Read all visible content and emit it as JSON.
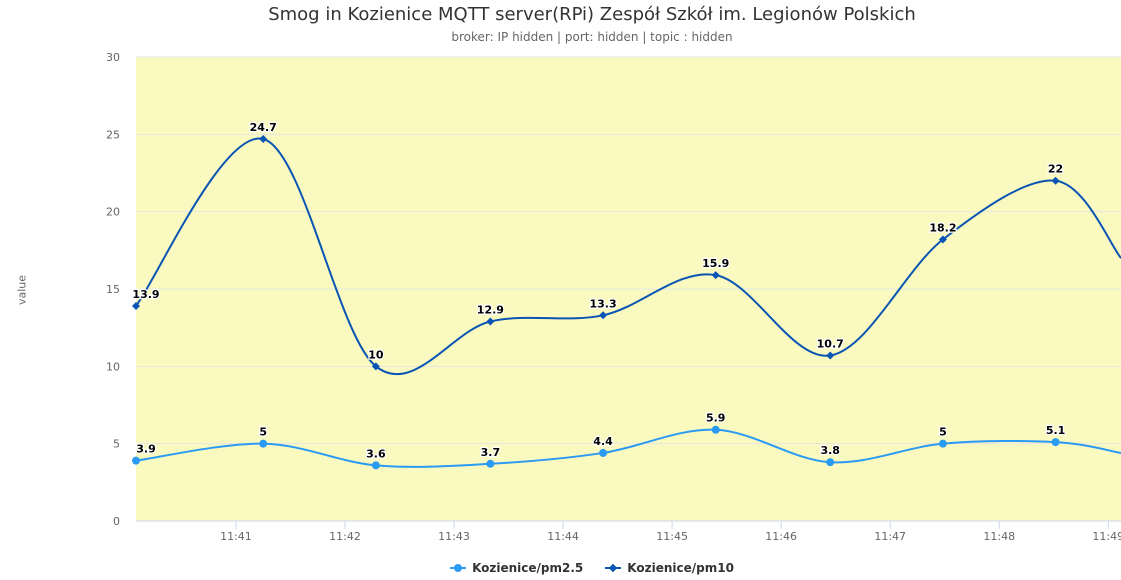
{
  "title": "Smog in Kozienice MQTT server(RPi) Zespół Szkół im. Legionów Polskich",
  "subtitle": "broker: IP hidden | port: hidden | topic : hidden",
  "colors": {
    "plot_background": "#fafac0",
    "grid": "#e6e6e6",
    "pm25": "#2b9af3",
    "pm10": "#0a55b3"
  },
  "chart_data": {
    "type": "line",
    "title": "Smog in Kozienice MQTT server(RPi) Zespół Szkół im. Legionów Polskich",
    "subtitle": "broker: IP hidden | port: hidden | topic : hidden",
    "xlabel": "",
    "ylabel": "value",
    "ylim": [
      0,
      30
    ],
    "yticks": [
      "0",
      "5",
      "10",
      "15",
      "20",
      "25",
      "30"
    ],
    "xticks": [
      "11:41",
      "11:42",
      "11:43",
      "11:44",
      "11:45",
      "11:46",
      "11:47",
      "11:48",
      "11:49"
    ],
    "xlim": [
      "11:40:05",
      "11:49:07"
    ],
    "grid": true,
    "legend_position": "bottom-center",
    "series": [
      {
        "name": "Kozienice/pm2.5",
        "marker": "circle",
        "color": "#2b9af3",
        "points": [
          {
            "x": "11:40:05",
            "y": 3.9,
            "label": "3.9"
          },
          {
            "x": "11:41:15",
            "y": 5,
            "label": "5"
          },
          {
            "x": "11:42:17",
            "y": 3.6,
            "label": "3.6"
          },
          {
            "x": "11:43:20",
            "y": 3.7,
            "label": "3.7"
          },
          {
            "x": "11:44:22",
            "y": 4.4,
            "label": "4.4"
          },
          {
            "x": "11:45:24",
            "y": 5.9,
            "label": "5.9"
          },
          {
            "x": "11:46:27",
            "y": 3.8,
            "label": "3.8"
          },
          {
            "x": "11:47:29",
            "y": 5,
            "label": "5"
          },
          {
            "x": "11:48:31",
            "y": 5.1,
            "label": "5.1"
          }
        ],
        "tail": {
          "x": "11:49:07",
          "y": 4.4
        }
      },
      {
        "name": "Kozienice/pm10",
        "marker": "diamond",
        "color": "#0a55b3",
        "points": [
          {
            "x": "11:40:05",
            "y": 13.9,
            "label": "13.9"
          },
          {
            "x": "11:41:15",
            "y": 24.7,
            "label": "24.7"
          },
          {
            "x": "11:42:17",
            "y": 10,
            "label": "10"
          },
          {
            "x": "11:43:20",
            "y": 12.9,
            "label": "12.9"
          },
          {
            "x": "11:44:22",
            "y": 13.3,
            "label": "13.3"
          },
          {
            "x": "11:45:24",
            "y": 15.9,
            "label": "15.9"
          },
          {
            "x": "11:46:27",
            "y": 10.7,
            "label": "10.7"
          },
          {
            "x": "11:47:29",
            "y": 18.2,
            "label": "18.2"
          },
          {
            "x": "11:48:31",
            "y": 22,
            "label": "22"
          }
        ],
        "tail": {
          "x": "11:49:07",
          "y": 17
        }
      }
    ]
  }
}
